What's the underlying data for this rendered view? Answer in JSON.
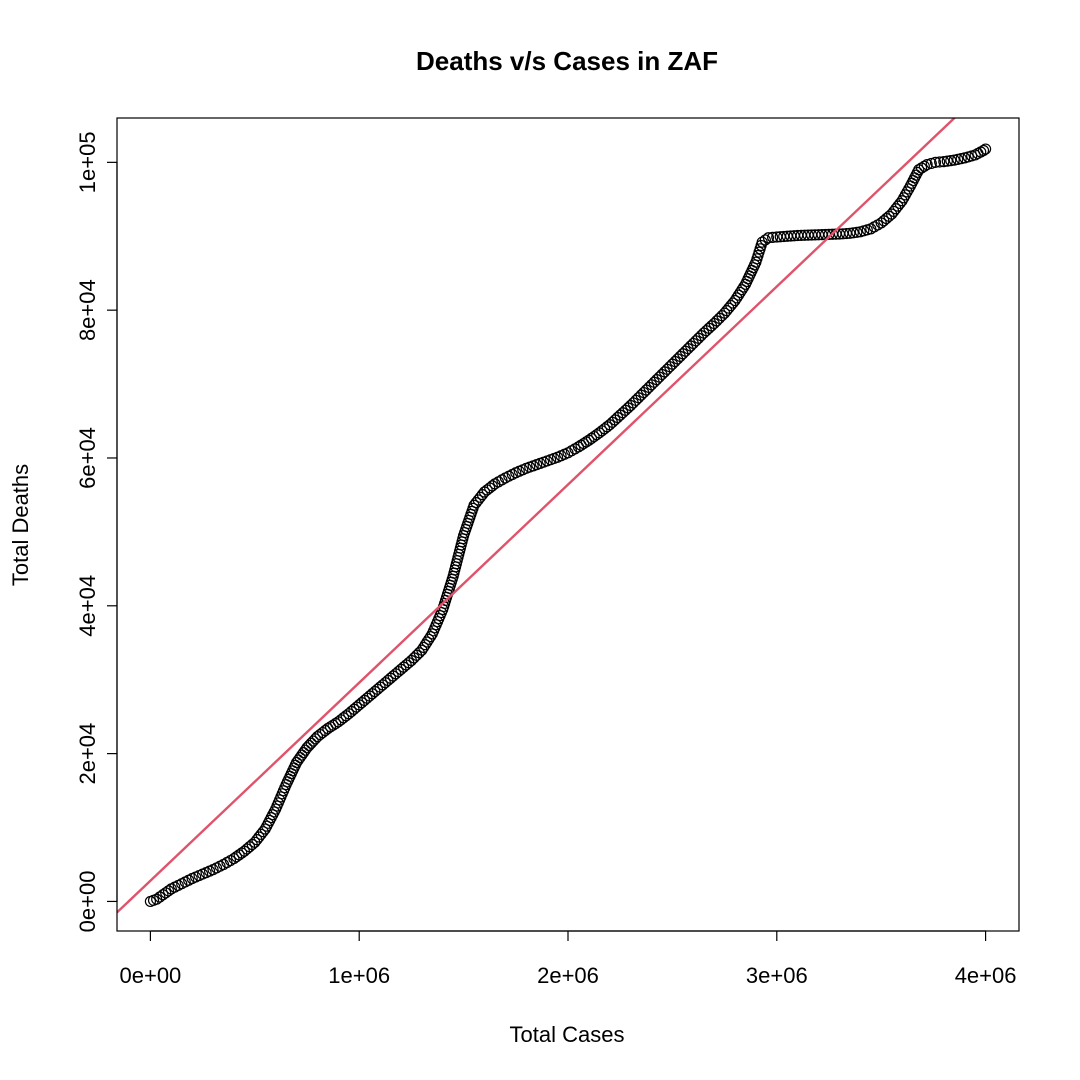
{
  "chart_data": {
    "type": "scatter",
    "title": "Deaths v/s Cases in ZAF",
    "xlabel": "Total Cases",
    "ylabel": "Total Deaths",
    "xlim": [
      -160000,
      4160000
    ],
    "ylim": [
      -4000,
      106000
    ],
    "x_ticks": [
      0,
      1000000,
      2000000,
      3000000,
      4000000
    ],
    "x_tick_labels": [
      "0e+00",
      "1e+06",
      "2e+06",
      "3e+06",
      "4e+06"
    ],
    "y_ticks": [
      0,
      20000,
      40000,
      60000,
      80000,
      100000
    ],
    "y_tick_labels": [
      "0e+00",
      "2e+04",
      "4e+04",
      "6e+04",
      "8e+04",
      "1e+05"
    ],
    "grid": false,
    "series": [
      {
        "marker": "open-circle",
        "color": "#000000",
        "points": [
          [
            0,
            0
          ],
          [
            30000,
            300
          ],
          [
            60000,
            900
          ],
          [
            100000,
            1700
          ],
          [
            150000,
            2400
          ],
          [
            200000,
            3100
          ],
          [
            250000,
            3700
          ],
          [
            300000,
            4300
          ],
          [
            350000,
            5000
          ],
          [
            400000,
            5800
          ],
          [
            450000,
            6800
          ],
          [
            500000,
            8000
          ],
          [
            550000,
            9800
          ],
          [
            600000,
            12500
          ],
          [
            650000,
            15800
          ],
          [
            700000,
            18800
          ],
          [
            750000,
            20800
          ],
          [
            800000,
            22300
          ],
          [
            850000,
            23400
          ],
          [
            900000,
            24300
          ],
          [
            950000,
            25400
          ],
          [
            1000000,
            26600
          ],
          [
            1050000,
            27800
          ],
          [
            1100000,
            29000
          ],
          [
            1150000,
            30200
          ],
          [
            1200000,
            31400
          ],
          [
            1250000,
            32600
          ],
          [
            1300000,
            34000
          ],
          [
            1350000,
            36200
          ],
          [
            1400000,
            39500
          ],
          [
            1450000,
            44000
          ],
          [
            1500000,
            49500
          ],
          [
            1550000,
            53600
          ],
          [
            1600000,
            55400
          ],
          [
            1650000,
            56500
          ],
          [
            1700000,
            57300
          ],
          [
            1750000,
            58000
          ],
          [
            1800000,
            58600
          ],
          [
            1850000,
            59100
          ],
          [
            1900000,
            59600
          ],
          [
            1950000,
            60100
          ],
          [
            2000000,
            60700
          ],
          [
            2050000,
            61500
          ],
          [
            2100000,
            62400
          ],
          [
            2150000,
            63400
          ],
          [
            2200000,
            64500
          ],
          [
            2250000,
            65800
          ],
          [
            2300000,
            67100
          ],
          [
            2350000,
            68500
          ],
          [
            2400000,
            69900
          ],
          [
            2450000,
            71300
          ],
          [
            2500000,
            72700
          ],
          [
            2550000,
            74100
          ],
          [
            2600000,
            75500
          ],
          [
            2650000,
            76900
          ],
          [
            2700000,
            78200
          ],
          [
            2750000,
            79600
          ],
          [
            2800000,
            81300
          ],
          [
            2850000,
            83500
          ],
          [
            2900000,
            86500
          ],
          [
            2930000,
            89200
          ],
          [
            2960000,
            89800
          ],
          [
            3000000,
            89900
          ],
          [
            3050000,
            90000
          ],
          [
            3100000,
            90100
          ],
          [
            3150000,
            90150
          ],
          [
            3200000,
            90200
          ],
          [
            3250000,
            90250
          ],
          [
            3300000,
            90300
          ],
          [
            3350000,
            90400
          ],
          [
            3400000,
            90600
          ],
          [
            3450000,
            91000
          ],
          [
            3500000,
            91800
          ],
          [
            3550000,
            93000
          ],
          [
            3600000,
            94800
          ],
          [
            3640000,
            96800
          ],
          [
            3680000,
            99000
          ],
          [
            3720000,
            99700
          ],
          [
            3760000,
            100000
          ],
          [
            3800000,
            100100
          ],
          [
            3850000,
            100300
          ],
          [
            3900000,
            100600
          ],
          [
            3950000,
            101000
          ],
          [
            3990000,
            101600
          ],
          [
            4000000,
            101800
          ]
        ]
      }
    ],
    "fit_line": {
      "color": "#DF536B",
      "intercept": 2800,
      "slope": 0.0268
    }
  }
}
